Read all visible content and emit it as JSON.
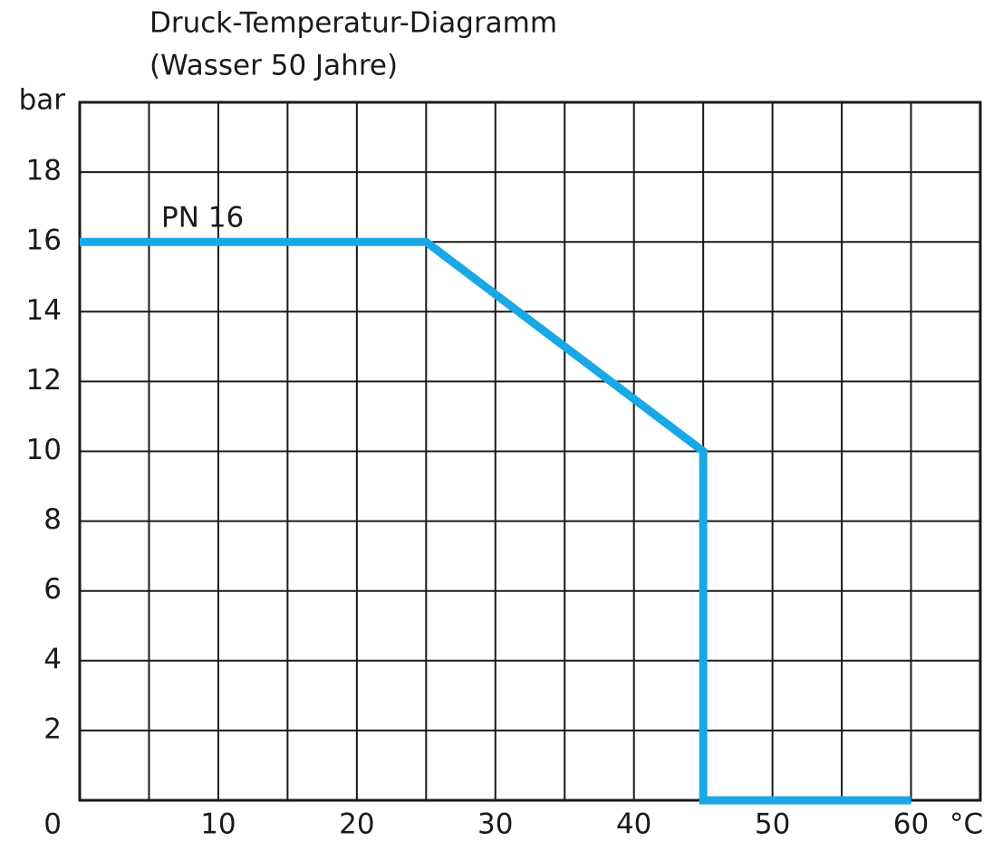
{
  "chart_data": {
    "type": "line",
    "title": "Druck-Temperatur-Diagramm",
    "subtitle": "(Wasser 50 Jahre)",
    "y_label": "bar",
    "x_label": "°C",
    "annotation": "PN 16",
    "xlim": [
      0,
      65
    ],
    "ylim": [
      0,
      20
    ],
    "xticks": [
      10,
      20,
      30,
      40,
      50,
      60
    ],
    "yticks": [
      0,
      2,
      4,
      6,
      8,
      10,
      12,
      14,
      16,
      18
    ],
    "xgrid": [
      5,
      10,
      15,
      20,
      25,
      30,
      35,
      40,
      45,
      50,
      55,
      60
    ],
    "grid": true,
    "series": [
      {
        "name": "PN 16",
        "color": "#18a8e6",
        "x": [
          0,
          25,
          45,
          45,
          60
        ],
        "values": [
          16,
          16,
          10,
          0,
          0
        ]
      }
    ]
  }
}
